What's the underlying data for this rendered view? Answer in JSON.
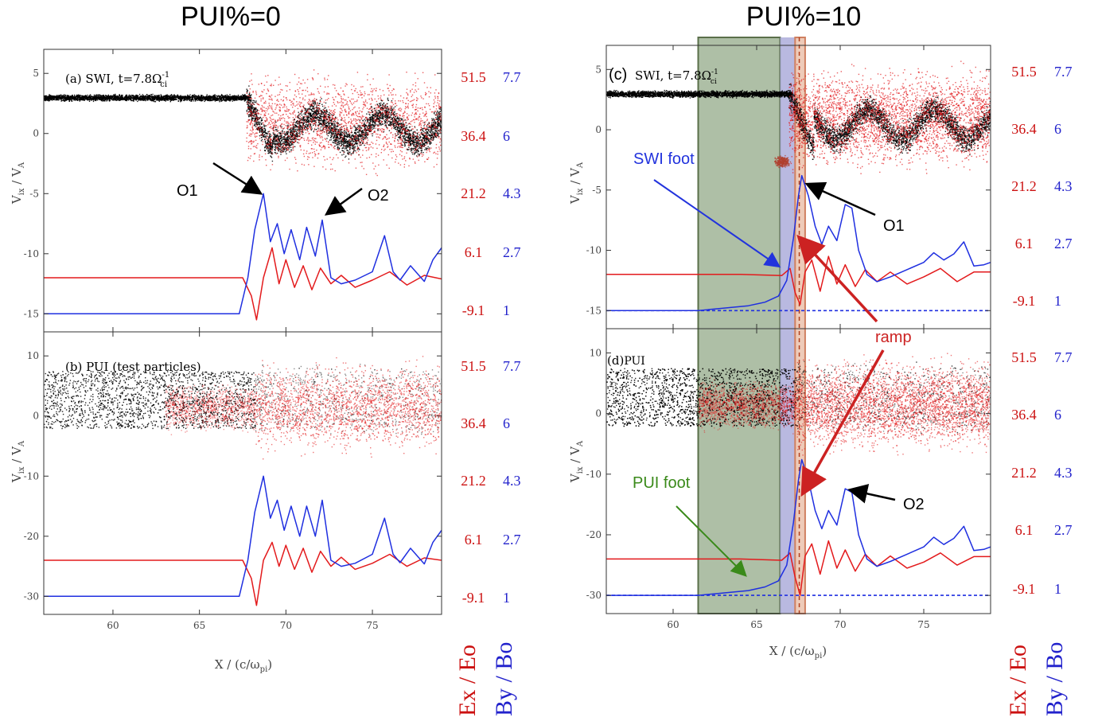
{
  "titles": {
    "left": "PUI%=0",
    "right": "PUI%=10"
  },
  "colors": {
    "ex": "#e31a1c",
    "by": "#1f2fe0",
    "particles_swi": "#000000",
    "particles_red": "#e31a1c",
    "swi_foot_box": "#a8a8d8",
    "pui_foot_box": "#6b8a5c",
    "ramp_box": "#e0a080",
    "green_arrow": "#3a8a1a",
    "blue_arrow": "#2233dd",
    "ramp_arrow": "#cc2222"
  },
  "axis": {
    "xlabel": "X / (c/ω",
    "xlabel_sub": "pi",
    "xlabel_close": ")",
    "ylabel": "V",
    "ylabel_sub": "ix",
    "ylabel_mid": " / V",
    "ylabel_sub2": "A",
    "right_units_ex": "Ex / Eo",
    "right_units_by": "By / Bo"
  },
  "right_ticks": {
    "ex": [
      "51.5",
      "36.4",
      "21.2",
      "6.1",
      "-9.1"
    ],
    "by": [
      "7.7",
      "6",
      "4.3",
      "2.7",
      "1"
    ]
  },
  "annotations": {
    "o1": "O1",
    "o2": "O2",
    "swi_foot": "SWI foot",
    "pui_foot": "PUI foot",
    "ramp": "ramp"
  },
  "chart_data": [
    {
      "type": "scatter",
      "panel": "a",
      "label": "(a) SWI, t=7.8Ω",
      "label_sup": "-1",
      "label_sub": "ci",
      "xlim": [
        56,
        79
      ],
      "ylim": [
        -16.5,
        7
      ],
      "xticks": [
        60,
        65,
        70,
        75
      ],
      "yticks": [
        5,
        0,
        -5,
        -10,
        -15
      ],
      "series": [
        {
          "name": "Ex / Eo",
          "x": [
            56,
            60,
            64,
            67.5,
            68.0,
            68.3,
            68.7,
            69.2,
            69.6,
            70.0,
            70.5,
            71.0,
            71.5,
            72.0,
            72.6,
            73.2,
            74,
            75,
            76,
            77,
            78,
            79
          ],
          "y": [
            -12,
            -12,
            -12,
            -12,
            -13.5,
            -15.5,
            -12,
            -9.5,
            -12.5,
            -10.5,
            -12.8,
            -11,
            -13,
            -11.2,
            -12.5,
            -11.8,
            -12.8,
            -12.2,
            -11.5,
            -12.6,
            -11.8,
            -12.1
          ]
        },
        {
          "name": "By / Bo",
          "x": [
            56,
            60,
            64,
            67.3,
            67.8,
            68.2,
            68.7,
            69.1,
            69.5,
            69.9,
            70.3,
            70.8,
            71.2,
            71.7,
            72.1,
            72.6,
            73.2,
            74,
            75,
            75.7,
            76.2,
            76.6,
            77.2,
            78,
            78.5,
            79
          ],
          "y": [
            -15,
            -15,
            -15,
            -15,
            -12,
            -8,
            -5,
            -9,
            -7.5,
            -10,
            -8,
            -10.5,
            -7.8,
            -10.2,
            -7.2,
            -12,
            -12.5,
            -12.2,
            -11.5,
            -8.5,
            -11.5,
            -12.2,
            -11,
            -12.3,
            -10.5,
            -9.5
          ]
        }
      ],
      "particles": {
        "swi_core_v": 3,
        "x_jump": 68
      }
    },
    {
      "type": "scatter",
      "panel": "b",
      "label": "(b) PUI (test particles)",
      "xlim": [
        56,
        79
      ],
      "ylim": [
        -33,
        14
      ],
      "xticks": [
        60,
        65,
        70,
        75
      ],
      "yticks": [
        10,
        0,
        -10,
        -20,
        -30
      ],
      "series": [
        {
          "name": "Ex / Eo",
          "x": [
            56,
            60,
            64,
            67.5,
            68.0,
            68.3,
            68.7,
            69.2,
            69.6,
            70.0,
            70.5,
            71.0,
            71.5,
            72.0,
            72.6,
            73.2,
            74,
            75,
            76,
            77,
            78,
            79
          ],
          "y": [
            -24,
            -24,
            -24,
            -24,
            -27,
            -31.5,
            -24,
            -21,
            -25,
            -21.5,
            -25.5,
            -22,
            -26,
            -22.5,
            -25,
            -23.5,
            -25.5,
            -24.5,
            -23,
            -25,
            -23.6,
            -24
          ]
        },
        {
          "name": "By / Bo",
          "x": [
            56,
            60,
            64,
            67.3,
            67.8,
            68.2,
            68.7,
            69.1,
            69.5,
            69.9,
            70.3,
            70.8,
            71.2,
            71.7,
            72.1,
            72.6,
            73.2,
            74,
            75,
            75.7,
            76.2,
            76.6,
            77.2,
            78,
            78.5,
            79
          ],
          "y": [
            -30,
            -30,
            -30,
            -30,
            -24,
            -16,
            -10,
            -17,
            -14,
            -19,
            -15,
            -20,
            -15,
            -20,
            -14,
            -24,
            -25,
            -24.5,
            -23,
            -17,
            -23,
            -24.4,
            -22,
            -24.6,
            -21,
            -19
          ]
        }
      ]
    },
    {
      "type": "scatter",
      "panel": "c",
      "label": "(c)SWI, t=7.8Ω",
      "label_sup": "-1",
      "label_sub": "ci",
      "xlim": [
        56,
        79
      ],
      "ylim": [
        -16.5,
        7
      ],
      "xticks": [
        60,
        65,
        70,
        75
      ],
      "yticks": [
        5,
        0,
        -5,
        -10,
        -15
      ],
      "series": [
        {
          "name": "Ex / Eo",
          "x": [
            56,
            60,
            64,
            66.5,
            67.0,
            67.3,
            67.6,
            67.9,
            68.3,
            68.8,
            69.3,
            69.8,
            70.3,
            70.9,
            71.5,
            72.2,
            73,
            74,
            75,
            76,
            77,
            78,
            79
          ],
          "y": [
            -12,
            -12,
            -12,
            -12.1,
            -11.5,
            -13.5,
            -14.5,
            -11.8,
            -10.8,
            -13.4,
            -10.5,
            -12.8,
            -11.2,
            -13,
            -11.6,
            -12.6,
            -11.8,
            -12.8,
            -12.2,
            -11.5,
            -12.6,
            -11.8,
            -11.8
          ]
        },
        {
          "name": "By / Bo",
          "x": [
            56,
            60,
            61.5,
            63,
            64.5,
            65.5,
            66.3,
            66.8,
            67.2,
            67.5,
            67.7,
            68.1,
            68.5,
            68.9,
            69.3,
            69.8,
            70.3,
            70.7,
            71.1,
            71.6,
            72.2,
            73,
            74,
            75,
            75.6,
            76.2,
            76.8,
            77.4,
            78,
            78.6,
            79
          ],
          "y": [
            -15,
            -15,
            -15,
            -14.8,
            -14.6,
            -14.3,
            -13.8,
            -12.5,
            -9,
            -5.5,
            -3.8,
            -5.5,
            -8,
            -9.5,
            -8,
            -9.2,
            -6.2,
            -6.5,
            -10,
            -12,
            -12.6,
            -12.2,
            -11.6,
            -11,
            -10.2,
            -10.8,
            -10.3,
            -9.3,
            -11.3,
            -11.2,
            -11
          ]
        },
        {
          "name": "By baseline",
          "x": [
            56,
            79
          ],
          "y": [
            -15,
            -15
          ]
        }
      ]
    },
    {
      "type": "scatter",
      "panel": "d",
      "label": "(d)PUI",
      "xlim": [
        56,
        79
      ],
      "ylim": [
        -33,
        14
      ],
      "xticks": [
        60,
        65,
        70,
        75
      ],
      "yticks": [
        10,
        0,
        -10,
        -20,
        -30
      ],
      "series": [
        {
          "name": "Ex / Eo",
          "x": [
            56,
            60,
            64,
            66.5,
            67.0,
            67.3,
            67.6,
            67.9,
            68.3,
            68.8,
            69.3,
            69.8,
            70.3,
            70.9,
            71.5,
            72.2,
            73,
            74,
            75,
            76,
            77,
            78,
            79
          ],
          "y": [
            -24,
            -24,
            -24,
            -24.2,
            -23,
            -27,
            -30,
            -23.5,
            -21.5,
            -26.5,
            -21,
            -25.5,
            -22.5,
            -26,
            -23.2,
            -25.2,
            -23.5,
            -25.5,
            -24.5,
            -23,
            -25,
            -23.6,
            -23.6
          ]
        },
        {
          "name": "By / Bo",
          "x": [
            56,
            60,
            61.5,
            63,
            64.5,
            65.5,
            66.3,
            66.8,
            67.2,
            67.5,
            67.7,
            68.1,
            68.5,
            68.9,
            69.3,
            69.8,
            70.3,
            70.7,
            71.1,
            71.6,
            72.2,
            73,
            74,
            75,
            75.6,
            76.2,
            76.8,
            77.4,
            78,
            78.6,
            79
          ],
          "y": [
            -30,
            -30,
            -30,
            -29.6,
            -29.2,
            -28.6,
            -27.6,
            -25,
            -18,
            -11,
            -7.6,
            -11,
            -16,
            -19,
            -16,
            -18.4,
            -12.4,
            -13,
            -20,
            -24,
            -25.2,
            -24.4,
            -23.2,
            -22,
            -20.4,
            -21.6,
            -20.6,
            -18.6,
            -22.6,
            -22.4,
            -22
          ]
        },
        {
          "name": "By baseline",
          "x": [
            56,
            79
          ],
          "y": [
            -30,
            -30
          ]
        }
      ]
    }
  ]
}
